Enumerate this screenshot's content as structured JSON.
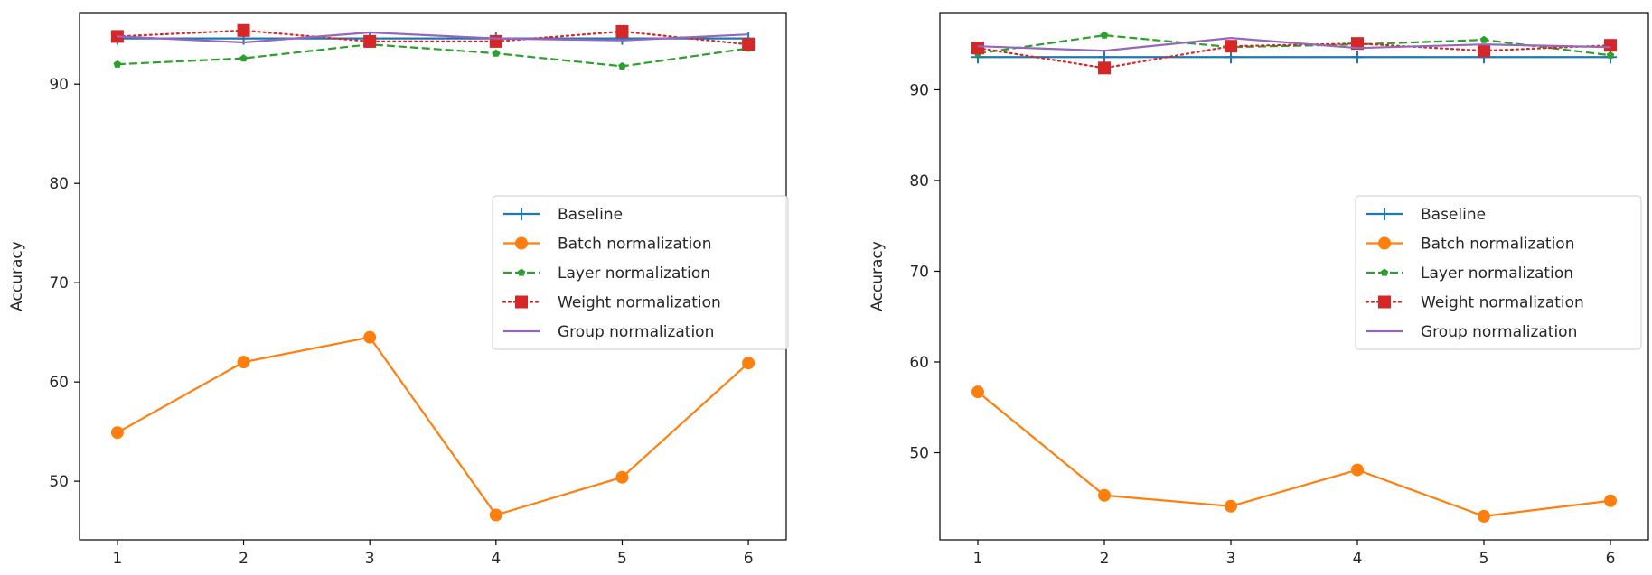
{
  "chart_data": [
    {
      "type": "line",
      "xlabel": "",
      "ylabel": "Accuracy",
      "x": [
        1,
        2,
        3,
        4,
        5,
        6
      ],
      "xticks": [
        1,
        2,
        3,
        4,
        5,
        6
      ],
      "yticks": [
        50,
        60,
        70,
        80,
        90
      ],
      "xlim": [
        0.7,
        6.3
      ],
      "ylim": [
        44.1,
        97.2
      ],
      "grid": false,
      "legend_position": "center-right",
      "series": [
        {
          "name": "Baseline",
          "color": "#1f77b4",
          "marker": "plus",
          "dash": "solid",
          "values": [
            94.6,
            94.6,
            94.6,
            94.6,
            94.6,
            94.6
          ]
        },
        {
          "name": "Batch normalization",
          "color": "#ff7f0e",
          "marker": "circle",
          "dash": "solid",
          "values": [
            54.9,
            62.0,
            64.5,
            46.6,
            50.4,
            61.9
          ]
        },
        {
          "name": "Layer normalization",
          "color": "#2ca02c",
          "marker": "pentagon",
          "dash": "dashed",
          "values": [
            92.0,
            92.6,
            94.0,
            93.1,
            91.8,
            93.6
          ]
        },
        {
          "name": "Weight normalization",
          "color": "#d62728",
          "marker": "square",
          "dash": "dotted",
          "values": [
            94.8,
            95.4,
            94.3,
            94.3,
            95.3,
            94.0
          ]
        },
        {
          "name": "Group normalization",
          "color": "#9467bd",
          "marker": "none",
          "dash": "solid",
          "values": [
            94.8,
            94.2,
            95.2,
            94.6,
            94.4,
            95.0
          ]
        }
      ]
    },
    {
      "type": "line",
      "xlabel": "",
      "ylabel": "Accuracy",
      "x": [
        1,
        2,
        3,
        4,
        5,
        6
      ],
      "xticks": [
        1,
        2,
        3,
        4,
        5,
        6
      ],
      "yticks": [
        50,
        60,
        70,
        80,
        90
      ],
      "xlim": [
        0.7,
        6.3
      ],
      "ylim": [
        40.4,
        98.5
      ],
      "grid": false,
      "legend_position": "center-right",
      "series": [
        {
          "name": "Baseline",
          "color": "#1f77b4",
          "marker": "plus",
          "dash": "solid",
          "values": [
            93.6,
            93.6,
            93.6,
            93.6,
            93.6,
            93.6
          ]
        },
        {
          "name": "Batch normalization",
          "color": "#ff7f0e",
          "marker": "circle",
          "dash": "solid",
          "values": [
            56.7,
            45.3,
            44.1,
            48.1,
            43.0,
            44.7
          ]
        },
        {
          "name": "Layer normalization",
          "color": "#2ca02c",
          "marker": "pentagon",
          "dash": "dashed",
          "values": [
            94.0,
            96.0,
            94.7,
            95.0,
            95.5,
            93.8
          ]
        },
        {
          "name": "Weight normalization",
          "color": "#d62728",
          "marker": "square",
          "dash": "dotted",
          "values": [
            94.6,
            92.4,
            94.8,
            95.1,
            94.3,
            94.9
          ]
        },
        {
          "name": "Group normalization",
          "color": "#9467bd",
          "marker": "none",
          "dash": "solid",
          "values": [
            94.8,
            94.3,
            95.7,
            94.6,
            95.0,
            94.7
          ]
        }
      ]
    }
  ]
}
